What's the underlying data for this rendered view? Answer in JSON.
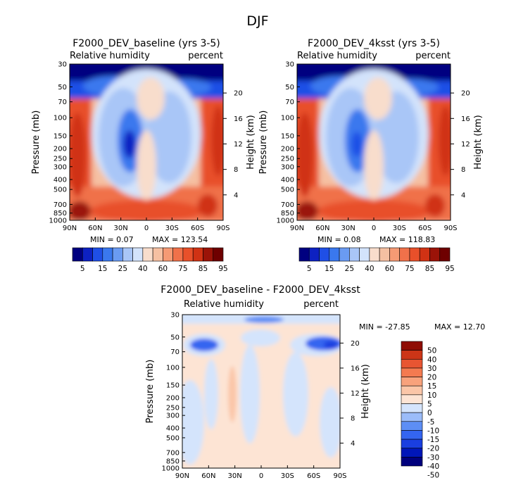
{
  "figure_title": "DJF",
  "pressure_ticks": [
    "30",
    "50",
    "70",
    "100",
    "150",
    "200",
    "250",
    "300",
    "400",
    "500",
    "700",
    "850",
    "1000"
  ],
  "pressure_values": [
    30,
    50,
    70,
    100,
    150,
    200,
    250,
    300,
    400,
    500,
    700,
    850,
    1000
  ],
  "height_ticks": [
    "4",
    "8",
    "12",
    "16",
    "20"
  ],
  "height_values": [
    4,
    8,
    12,
    16,
    20
  ],
  "lat_ticks": [
    "90N",
    "60N",
    "30N",
    "0",
    "30S",
    "60S",
    "90S"
  ],
  "ylabel": "Pressure (mb)",
  "ylabel_right": "Height (km)",
  "colors": {
    "hum": [
      "#000080",
      "#0d21c2",
      "#1f4fe6",
      "#3a78ee",
      "#6a9bf2",
      "#a9c6f7",
      "#d3e3fb",
      "#f8ddcc",
      "#f5c0a2",
      "#f59a74",
      "#f0714a",
      "#e8502a",
      "#d03214",
      "#9b1308",
      "#6e0000"
    ],
    "diff": [
      "#00007d",
      "#0016b8",
      "#1a3fe0",
      "#3465f0",
      "#5d8ef5",
      "#9bbcf9",
      "#d4e4fc",
      "#fde4d4",
      "#fbc6a8",
      "#f8a27c",
      "#f47a50",
      "#e85532",
      "#cc3517",
      "#8f0d04"
    ]
  },
  "chart_data": [
    {
      "type": "contour",
      "title": "F2000_DEV_baseline (yrs 3-5)",
      "left_label": "Relative humidity",
      "right_label": "percent",
      "min_label": "MIN =    0.07",
      "max_label": "MAX = 123.54",
      "colorbar_labels": [
        "5",
        "15",
        "25",
        "40",
        "60",
        "75",
        "85",
        "95"
      ],
      "x": [
        "90N",
        "60N",
        "30N",
        "0",
        "30S",
        "60S",
        "90S"
      ],
      "ylim": [
        1000,
        30
      ]
    },
    {
      "type": "contour",
      "title": "F2000_DEV_4ksst (yrs 3-5)",
      "left_label": "Relative humidity",
      "right_label": "percent",
      "min_label": "MIN =    0.08",
      "max_label": "MAX = 118.83",
      "colorbar_labels": [
        "5",
        "15",
        "25",
        "40",
        "60",
        "75",
        "85",
        "95"
      ],
      "x": [
        "90N",
        "60N",
        "30N",
        "0",
        "30S",
        "60S",
        "90S"
      ],
      "ylim": [
        1000,
        30
      ]
    },
    {
      "type": "contour",
      "title": "F2000_DEV_baseline - F2000_DEV_4ksst",
      "left_label": "Relative humidity",
      "right_label": "percent",
      "min_label": "MIN = -27.85",
      "max_label": "MAX =   12.70",
      "colorbar_labels": [
        "50",
        "40",
        "30",
        "20",
        "15",
        "10",
        "5",
        "0",
        "-5",
        "-10",
        "-15",
        "-20",
        "-30",
        "-40",
        "-50"
      ],
      "x": [
        "90N",
        "60N",
        "30N",
        "0",
        "30S",
        "60S",
        "90S"
      ],
      "ylim": [
        1000,
        30
      ]
    }
  ]
}
